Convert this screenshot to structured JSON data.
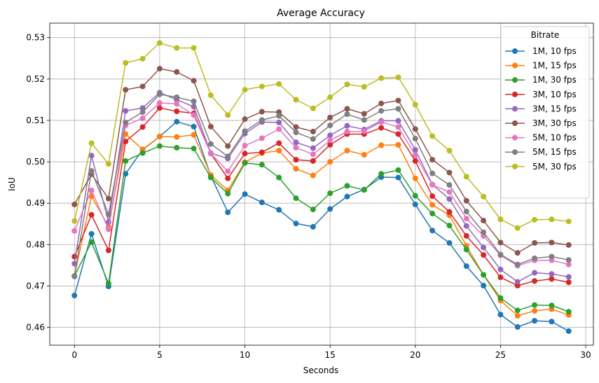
{
  "chart_data": {
    "type": "line",
    "title": "Average Accuracy",
    "xlabel": "Seconds",
    "ylabel": "IoU",
    "xlim": [
      -1.45,
      30.45
    ],
    "ylim": [
      0.4557,
      0.5335
    ],
    "xticks": [
      0,
      5,
      10,
      15,
      20,
      25,
      30
    ],
    "yticks": [
      0.46,
      0.47,
      0.48,
      0.49,
      0.5,
      0.51,
      0.52,
      0.53
    ],
    "ytick_labels": [
      "0.46",
      "0.47",
      "0.48",
      "0.49",
      "0.50",
      "0.51",
      "0.52",
      "0.53"
    ],
    "grid": true,
    "legend": {
      "title": "Bitrate",
      "placement": "top-right"
    },
    "x": [
      0,
      1,
      2,
      3,
      4,
      5,
      6,
      7,
      8,
      9,
      10,
      11,
      12,
      13,
      14,
      15,
      16,
      17,
      18,
      19,
      20,
      21,
      22,
      23,
      24,
      25,
      26,
      27,
      28,
      29
    ],
    "series": [
      {
        "name": "1M, 10 fps",
        "color": "#1f77b4",
        "values": [
          0.4677,
          0.4826,
          0.4699,
          0.4971,
          0.5029,
          0.5061,
          0.5097,
          0.5085,
          0.4966,
          0.4878,
          0.4922,
          0.4902,
          0.4884,
          0.4851,
          0.4843,
          0.4886,
          0.4916,
          0.4933,
          0.4963,
          0.4962,
          0.4897,
          0.4834,
          0.4804,
          0.4748,
          0.4701,
          0.4631,
          0.4601,
          0.4616,
          0.4614,
          0.4591
        ]
      },
      {
        "name": "1M, 15 fps",
        "color": "#ff7f0e",
        "values": [
          0.4724,
          0.4917,
          0.4843,
          0.5067,
          0.503,
          0.5061,
          0.506,
          0.5065,
          0.4968,
          0.4931,
          0.4999,
          0.5021,
          0.5027,
          0.4983,
          0.4967,
          0.5,
          0.5027,
          0.5017,
          0.504,
          0.5041,
          0.496,
          0.4896,
          0.4871,
          0.4797,
          0.4727,
          0.4665,
          0.4628,
          0.464,
          0.4644,
          0.463
        ]
      },
      {
        "name": "1M, 30 fps",
        "color": "#2ca02c",
        "values": [
          0.4724,
          0.4806,
          0.4706,
          0.5002,
          0.5021,
          0.5038,
          0.5034,
          0.5032,
          0.4962,
          0.4923,
          0.4997,
          0.4993,
          0.4962,
          0.4912,
          0.4885,
          0.4924,
          0.4942,
          0.4932,
          0.4971,
          0.498,
          0.4918,
          0.4875,
          0.4846,
          0.4788,
          0.4727,
          0.4671,
          0.4641,
          0.4654,
          0.4653,
          0.4638
        ]
      },
      {
        "name": "3M, 10 fps",
        "color": "#d62728",
        "values": [
          0.4771,
          0.4872,
          0.4786,
          0.5049,
          0.5084,
          0.513,
          0.5122,
          0.5117,
          0.502,
          0.496,
          0.502,
          0.5023,
          0.5045,
          0.5005,
          0.5002,
          0.5041,
          0.5067,
          0.5067,
          0.5082,
          0.5067,
          0.5002,
          0.4917,
          0.4879,
          0.4821,
          0.4775,
          0.4721,
          0.4701,
          0.4712,
          0.4717,
          0.4709
        ]
      },
      {
        "name": "3M, 15 fps",
        "color": "#9467bd",
        "values": [
          0.4754,
          0.5015,
          0.4854,
          0.5123,
          0.513,
          0.5167,
          0.515,
          0.5133,
          0.5021,
          0.5008,
          0.5068,
          0.5096,
          0.5095,
          0.5047,
          0.5033,
          0.5064,
          0.5087,
          0.5078,
          0.5099,
          0.5099,
          0.5029,
          0.4945,
          0.491,
          0.4845,
          0.4793,
          0.474,
          0.471,
          0.4732,
          0.4729,
          0.4722
        ]
      },
      {
        "name": "3M, 30 fps",
        "color": "#8c564b",
        "values": [
          0.4897,
          0.497,
          0.4911,
          0.5174,
          0.5182,
          0.5225,
          0.5217,
          0.5196,
          0.5085,
          0.5038,
          0.5103,
          0.5121,
          0.512,
          0.5084,
          0.5073,
          0.5107,
          0.5128,
          0.5116,
          0.5141,
          0.5148,
          0.5079,
          0.5005,
          0.4974,
          0.4906,
          0.4858,
          0.4805,
          0.478,
          0.4804,
          0.4805,
          0.4799
        ]
      },
      {
        "name": "5M, 10 fps",
        "color": "#e377c2",
        "values": [
          0.4833,
          0.4931,
          0.4837,
          0.5088,
          0.5105,
          0.5142,
          0.514,
          0.5113,
          0.502,
          0.4977,
          0.5039,
          0.5057,
          0.5079,
          0.5034,
          0.5018,
          0.5052,
          0.5073,
          0.5074,
          0.5096,
          0.5084,
          0.5016,
          0.4944,
          0.4927,
          0.4863,
          0.4821,
          0.4774,
          0.4749,
          0.4762,
          0.4762,
          0.4752
        ]
      },
      {
        "name": "5M, 15 fps",
        "color": "#7f7f7f",
        "values": [
          0.4723,
          0.4978,
          0.4873,
          0.5095,
          0.512,
          0.5163,
          0.5156,
          0.5146,
          0.5043,
          0.5013,
          0.5074,
          0.5101,
          0.5111,
          0.5071,
          0.5055,
          0.5088,
          0.5115,
          0.5101,
          0.5123,
          0.5128,
          0.5056,
          0.4972,
          0.4944,
          0.488,
          0.483,
          0.4776,
          0.4752,
          0.4767,
          0.4771,
          0.4763
        ]
      },
      {
        "name": "5M, 30 fps",
        "color": "#bcbd22",
        "values": [
          0.4857,
          0.5045,
          0.4995,
          0.5239,
          0.5249,
          0.5287,
          0.5275,
          0.5275,
          0.5161,
          0.5113,
          0.5174,
          0.5182,
          0.5188,
          0.515,
          0.5129,
          0.5156,
          0.5187,
          0.5181,
          0.5202,
          0.5204,
          0.5138,
          0.5062,
          0.5027,
          0.4964,
          0.4916,
          0.4861,
          0.484,
          0.486,
          0.4861,
          0.4856
        ]
      }
    ]
  }
}
